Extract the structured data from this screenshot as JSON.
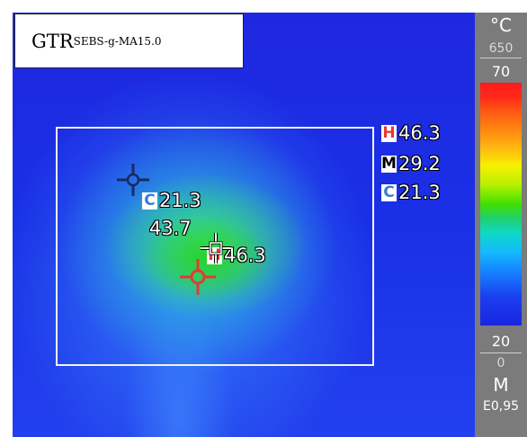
{
  "image_label": {
    "main": "GTR",
    "sub": "SEBS-g-MA15.0"
  },
  "summary": {
    "hot": {
      "tag": "H",
      "value": "46.3"
    },
    "mean": {
      "tag": "M",
      "value": "29.2"
    },
    "cold": {
      "tag": "C",
      "value": "21.3"
    }
  },
  "spot_readings": {
    "cold_spot": {
      "tag": "C",
      "value": "21.3"
    },
    "center_spot": {
      "value": "43.7"
    },
    "hot_spot": {
      "tag": "H",
      "value": "46.3"
    }
  },
  "scale": {
    "unit": "°C",
    "range_max": "650",
    "span_max": "70",
    "span_min": "20",
    "range_min": "0",
    "mode": "M",
    "emissivity": "E0,95"
  },
  "colors": {
    "hot_marker": "#e53935",
    "cold_marker": "#1a2a60",
    "center_marker": "#ffffff"
  }
}
